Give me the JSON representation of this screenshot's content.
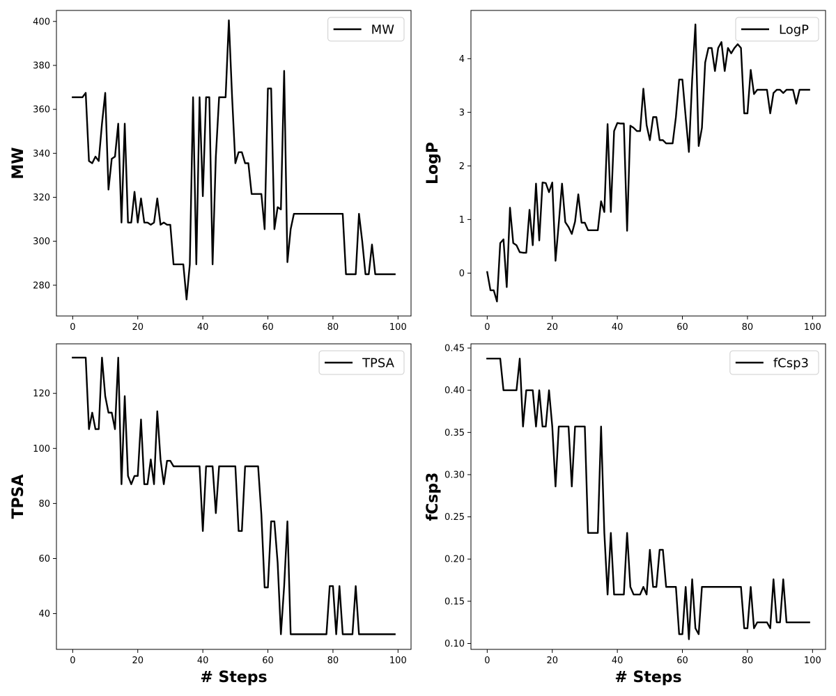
{
  "chart_data": [
    {
      "type": "line",
      "xlabel": "",
      "ylabel": "MW",
      "xlim": [
        -5,
        104
      ],
      "ylim": [
        266,
        405
      ],
      "xticks": [
        0,
        20,
        40,
        60,
        80,
        100
      ],
      "yticks": [
        280,
        300,
        320,
        340,
        360,
        380,
        400
      ],
      "legend": "top-right",
      "series": [
        {
          "name": "MW",
          "color": "#000000",
          "x": [
            0,
            1,
            2,
            3,
            4,
            5,
            6,
            7,
            8,
            9,
            10,
            11,
            12,
            13,
            14,
            15,
            16,
            17,
            18,
            19,
            20,
            21,
            22,
            23,
            24,
            25,
            26,
            27,
            28,
            29,
            30,
            31,
            32,
            33,
            34,
            35,
            36,
            37,
            38,
            39,
            40,
            41,
            42,
            43,
            44,
            45,
            46,
            47,
            48,
            49,
            50,
            51,
            52,
            53,
            54,
            55,
            56,
            57,
            58,
            59,
            60,
            61,
            62,
            63,
            64,
            65,
            66,
            67,
            68,
            69,
            70,
            71,
            72,
            73,
            74,
            75,
            76,
            77,
            78,
            79,
            80,
            81,
            82,
            83,
            84,
            85,
            86,
            87,
            88,
            89,
            90,
            91,
            92,
            93,
            94,
            95,
            96,
            97,
            98,
            99
          ],
          "values": [
            365.5,
            365.5,
            365.5,
            365.5,
            367.5,
            336.5,
            335.5,
            338.5,
            336.5,
            353.5,
            367.5,
            323.5,
            337.5,
            338.5,
            353.5,
            308.5,
            353.5,
            308.5,
            308.5,
            322.5,
            308.5,
            319.5,
            308.5,
            308.5,
            307.5,
            308.5,
            319.5,
            307.5,
            308.5,
            307.5,
            307.5,
            289.5,
            289.5,
            289.5,
            289.5,
            273.5,
            289.5,
            365.5,
            289.5,
            365.5,
            320.5,
            365.5,
            365.5,
            289.5,
            338.5,
            365.5,
            365.5,
            365.5,
            400.5,
            365.5,
            335.5,
            340.5,
            340.5,
            335.5,
            335.5,
            321.5,
            321.5,
            321.5,
            321.5,
            305.5,
            369.5,
            369.5,
            305.5,
            315.5,
            314.5,
            377.5,
            290.5,
            305.5,
            312.5,
            312.5,
            312.5,
            312.5,
            312.5,
            312.5,
            312.5,
            312.5,
            312.5,
            312.5,
            312.5,
            312.5,
            312.5,
            312.5,
            312.5,
            312.5,
            285,
            285,
            285,
            285,
            312.5,
            300,
            285,
            285,
            298.5,
            285,
            285,
            285,
            285,
            285,
            285,
            285
          ]
        }
      ]
    },
    {
      "type": "line",
      "xlabel": "",
      "ylabel": "LogP",
      "xlim": [
        -5,
        104
      ],
      "ylim": [
        -0.8,
        4.9
      ],
      "xticks": [
        0,
        20,
        40,
        60,
        80,
        100
      ],
      "yticks": [
        0,
        1,
        2,
        3,
        4
      ],
      "legend": "top-right",
      "series": [
        {
          "name": "LogP",
          "color": "#000000",
          "x": [
            0,
            1,
            2,
            3,
            4,
            5,
            6,
            7,
            8,
            9,
            10,
            11,
            12,
            13,
            14,
            15,
            16,
            17,
            18,
            19,
            20,
            21,
            22,
            23,
            24,
            25,
            26,
            27,
            28,
            29,
            30,
            31,
            32,
            33,
            34,
            35,
            36,
            37,
            38,
            39,
            40,
            41,
            42,
            43,
            44,
            45,
            46,
            47,
            48,
            49,
            50,
            51,
            52,
            53,
            54,
            55,
            56,
            57,
            58,
            59,
            60,
            61,
            62,
            63,
            64,
            65,
            66,
            67,
            68,
            69,
            70,
            71,
            72,
            73,
            74,
            75,
            76,
            77,
            78,
            79,
            80,
            81,
            82,
            83,
            84,
            85,
            86,
            87,
            88,
            89,
            90,
            91,
            92,
            93,
            94,
            95,
            96,
            97,
            98,
            99
          ],
          "values": [
            0.02,
            -0.32,
            -0.32,
            -0.53,
            0.56,
            0.63,
            -0.26,
            1.22,
            0.56,
            0.52,
            0.39,
            0.38,
            0.38,
            1.18,
            0.52,
            1.67,
            0.61,
            1.69,
            1.68,
            1.51,
            1.69,
            0.23,
            0.93,
            1.67,
            0.95,
            0.86,
            0.73,
            0.96,
            1.47,
            0.94,
            0.94,
            0.8,
            0.8,
            0.8,
            0.8,
            1.34,
            1.14,
            2.78,
            1.14,
            2.65,
            2.8,
            2.79,
            2.79,
            0.79,
            2.75,
            2.71,
            2.65,
            2.65,
            3.44,
            2.76,
            2.48,
            2.91,
            2.91,
            2.48,
            2.48,
            2.42,
            2.42,
            2.42,
            2.91,
            3.61,
            3.61,
            2.92,
            2.26,
            3.61,
            4.64,
            2.37,
            2.71,
            3.93,
            4.2,
            4.2,
            3.77,
            4.2,
            4.31,
            3.77,
            4.2,
            4.1,
            4.2,
            4.27,
            4.2,
            2.98,
            2.98,
            3.79,
            3.34,
            3.42,
            3.42,
            3.42,
            3.42,
            2.98,
            3.36,
            3.42,
            3.42,
            3.36,
            3.42,
            3.42,
            3.42,
            3.16,
            3.42,
            3.42,
            3.42,
            3.42
          ]
        }
      ]
    },
    {
      "type": "line",
      "xlabel": "# Steps",
      "ylabel": "TPSA",
      "xlim": [
        -5,
        104
      ],
      "ylim": [
        27,
        138
      ],
      "xticks": [
        0,
        20,
        40,
        60,
        80,
        100
      ],
      "yticks": [
        40,
        60,
        80,
        100,
        120
      ],
      "legend": "top-right",
      "series": [
        {
          "name": "TPSA",
          "color": "#000000",
          "x": [
            0,
            1,
            2,
            3,
            4,
            5,
            6,
            7,
            8,
            9,
            10,
            11,
            12,
            13,
            14,
            15,
            16,
            17,
            18,
            19,
            20,
            21,
            22,
            23,
            24,
            25,
            26,
            27,
            28,
            29,
            30,
            31,
            32,
            33,
            34,
            35,
            36,
            37,
            38,
            39,
            40,
            41,
            42,
            43,
            44,
            45,
            46,
            47,
            48,
            49,
            50,
            51,
            52,
            53,
            54,
            55,
            56,
            57,
            58,
            59,
            60,
            61,
            62,
            63,
            64,
            65,
            66,
            67,
            68,
            69,
            70,
            71,
            72,
            73,
            74,
            75,
            76,
            77,
            78,
            79,
            80,
            81,
            82,
            83,
            84,
            85,
            86,
            87,
            88,
            89,
            90,
            91,
            92,
            93,
            94,
            95,
            96,
            97,
            98,
            99
          ],
          "values": [
            133,
            133,
            133,
            133,
            133,
            107,
            113,
            107,
            107,
            133,
            119,
            113,
            113,
            107,
            133,
            87,
            119,
            90,
            87,
            90,
            90,
            110.5,
            87,
            87,
            96,
            87,
            113.5,
            96,
            87,
            95.5,
            95.5,
            93.5,
            93.5,
            93.5,
            93.5,
            93.5,
            93.5,
            93.5,
            93.5,
            93.5,
            70,
            93.5,
            93.5,
            93.5,
            76.5,
            93.5,
            93.5,
            93.5,
            93.5,
            93.5,
            93.5,
            70,
            70,
            93.5,
            93.5,
            93.5,
            93.5,
            93.5,
            76,
            49.5,
            49.5,
            73.5,
            73.5,
            58.5,
            32.5,
            50,
            73.5,
            32.5,
            32.5,
            32.5,
            32.5,
            32.5,
            32.5,
            32.5,
            32.5,
            32.5,
            32.5,
            32.5,
            32.5,
            50,
            50,
            32.5,
            50,
            32.5,
            32.5,
            32.5,
            32.5,
            50,
            32.5,
            32.5,
            32.5,
            32.5,
            32.5,
            32.5,
            32.5,
            32.5,
            32.5,
            32.5,
            32.5,
            32.5
          ]
        }
      ]
    },
    {
      "type": "line",
      "xlabel": "# Steps",
      "ylabel": "fCsp3",
      "xlim": [
        -5,
        104
      ],
      "ylim": [
        0.093,
        0.455
      ],
      "xticks": [
        0,
        20,
        40,
        60,
        80,
        100
      ],
      "yticks": [
        0.1,
        0.15,
        0.2,
        0.25,
        0.3,
        0.35,
        0.4,
        0.45
      ],
      "yticklabels": [
        "0.10",
        "0.15",
        "0.20",
        "0.25",
        "0.30",
        "0.35",
        "0.40",
        "0.45"
      ],
      "legend": "top-right",
      "series": [
        {
          "name": "fCsp3",
          "color": "#000000",
          "x": [
            0,
            1,
            2,
            3,
            4,
            5,
            6,
            7,
            8,
            9,
            10,
            11,
            12,
            13,
            14,
            15,
            16,
            17,
            18,
            19,
            20,
            21,
            22,
            23,
            24,
            25,
            26,
            27,
            28,
            29,
            30,
            31,
            32,
            33,
            34,
            35,
            36,
            37,
            38,
            39,
            40,
            41,
            42,
            43,
            44,
            45,
            46,
            47,
            48,
            49,
            50,
            51,
            52,
            53,
            54,
            55,
            56,
            57,
            58,
            59,
            60,
            61,
            62,
            63,
            64,
            65,
            66,
            67,
            68,
            69,
            70,
            71,
            72,
            73,
            74,
            75,
            76,
            77,
            78,
            79,
            80,
            81,
            82,
            83,
            84,
            85,
            86,
            87,
            88,
            89,
            90,
            91,
            92,
            93,
            94,
            95,
            96,
            97,
            98,
            99
          ],
          "values": [
            0.4375,
            0.4375,
            0.4375,
            0.4375,
            0.4375,
            0.4,
            0.4,
            0.4,
            0.4,
            0.4,
            0.4375,
            0.357,
            0.4,
            0.4,
            0.4,
            0.357,
            0.4,
            0.357,
            0.357,
            0.4,
            0.357,
            0.286,
            0.357,
            0.357,
            0.357,
            0.357,
            0.286,
            0.357,
            0.357,
            0.357,
            0.357,
            0.231,
            0.231,
            0.231,
            0.231,
            0.357,
            0.231,
            0.158,
            0.231,
            0.158,
            0.158,
            0.158,
            0.158,
            0.231,
            0.167,
            0.158,
            0.158,
            0.158,
            0.167,
            0.158,
            0.211,
            0.167,
            0.167,
            0.211,
            0.211,
            0.167,
            0.167,
            0.167,
            0.167,
            0.111,
            0.111,
            0.167,
            0.105,
            0.176,
            0.118,
            0.111,
            0.167,
            0.167,
            0.167,
            0.167,
            0.167,
            0.167,
            0.167,
            0.167,
            0.167,
            0.167,
            0.167,
            0.167,
            0.167,
            0.118,
            0.118,
            0.167,
            0.118,
            0.125,
            0.125,
            0.125,
            0.125,
            0.118,
            0.176,
            0.125,
            0.125,
            0.176,
            0.125,
            0.125,
            0.125,
            0.125,
            0.125,
            0.125,
            0.125,
            0.125
          ]
        }
      ]
    }
  ]
}
